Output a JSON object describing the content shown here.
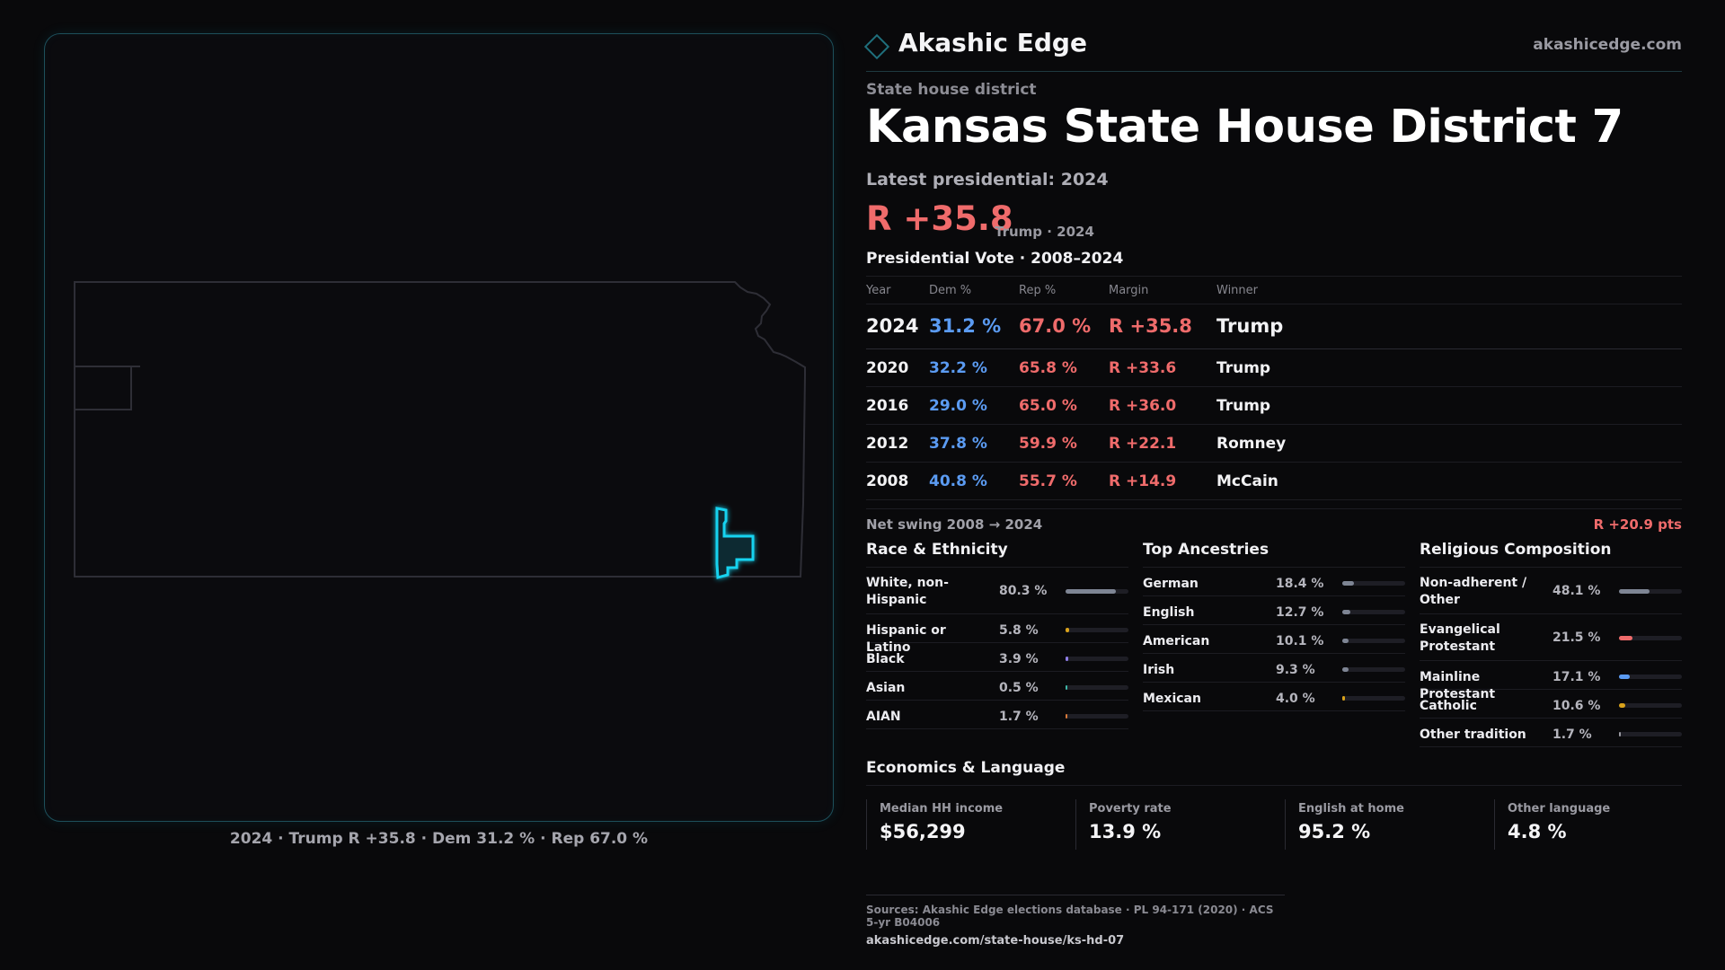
{
  "map": {
    "caption": "2024 · Trump R +35.8 · Dem 31.2 % · Rep 67.0 %"
  },
  "brand": {
    "name": "Akashic Edge",
    "url": "akashicedge.com"
  },
  "header": {
    "eyebrow": "State house district",
    "title": "Kansas State House District 7",
    "latest": "Latest presidential: 2024",
    "margin": "R +35.8",
    "margin_sub": "Trump · 2024"
  },
  "presidential": {
    "title": "Presidential Vote · 2008–2024",
    "headers": {
      "year": "Year",
      "dem": "Dem %",
      "rep": "Rep %",
      "margin": "Margin",
      "winner": "Winner"
    },
    "rows": [
      {
        "year": "2024",
        "dem": "31.2 %",
        "rep": "67.0 %",
        "margin": "R +35.8",
        "winner": "Trump"
      },
      {
        "year": "2020",
        "dem": "32.2 %",
        "rep": "65.8 %",
        "margin": "R +33.6",
        "winner": "Trump"
      },
      {
        "year": "2016",
        "dem": "29.0 %",
        "rep": "65.0 %",
        "margin": "R +36.0",
        "winner": "Trump"
      },
      {
        "year": "2012",
        "dem": "37.8 %",
        "rep": "59.9 %",
        "margin": "R +22.1",
        "winner": "Romney"
      },
      {
        "year": "2008",
        "dem": "40.8 %",
        "rep": "55.7 %",
        "margin": "R +14.9",
        "winner": "McCain"
      }
    ],
    "swing_label": "Net swing 2008 → 2024",
    "swing_value": "R +20.9 pts"
  },
  "race": {
    "title": "Race & Ethnicity",
    "rows": [
      {
        "label": "White, non-Hispanic",
        "pct": "80.3 %",
        "value": 80.3,
        "color": "#7e8594"
      },
      {
        "label": "Hispanic or Latino",
        "pct": "5.8 %",
        "value": 5.8,
        "color": "#d9a21b"
      },
      {
        "label": "Black",
        "pct": "3.9 %",
        "value": 3.9,
        "color": "#8f7ee8"
      },
      {
        "label": "Asian",
        "pct": "0.5 %",
        "value": 0.5,
        "color": "#3fb8a8"
      },
      {
        "label": "AIAN",
        "pct": "1.7 %",
        "value": 1.7,
        "color": "#d97a3a"
      }
    ]
  },
  "ancestry": {
    "title": "Top Ancestries",
    "rows": [
      {
        "label": "German",
        "pct": "18.4 %",
        "value": 18.4,
        "color": "#7e8594"
      },
      {
        "label": "English",
        "pct": "12.7 %",
        "value": 12.7,
        "color": "#7e8594"
      },
      {
        "label": "American",
        "pct": "10.1 %",
        "value": 10.1,
        "color": "#7e8594"
      },
      {
        "label": "Irish",
        "pct": "9.3 %",
        "value": 9.3,
        "color": "#7e8594"
      },
      {
        "label": "Mexican",
        "pct": "4.0 %",
        "value": 4.0,
        "color": "#d9a21b"
      }
    ]
  },
  "religion": {
    "title": "Religious Composition",
    "rows": [
      {
        "label": "Non-adherent / Other",
        "pct": "48.1 %",
        "value": 48.1,
        "color": "#7e8594"
      },
      {
        "label": "Evangelical Protestant",
        "pct": "21.5 %",
        "value": 21.5,
        "color": "#ef6b6b"
      },
      {
        "label": "Mainline Protestant",
        "pct": "17.1 %",
        "value": 17.1,
        "color": "#5b9bf2"
      },
      {
        "label": "Catholic",
        "pct": "10.6 %",
        "value": 10.6,
        "color": "#d9a21b"
      },
      {
        "label": "Other tradition",
        "pct": "1.7 %",
        "value": 1.7,
        "color": "#9a9aa2"
      }
    ]
  },
  "economics": {
    "title": "Economics & Language",
    "cells": [
      {
        "label": "Median HH income",
        "value": "$56,299"
      },
      {
        "label": "Poverty rate",
        "value": "13.9 %"
      },
      {
        "label": "English at home",
        "value": "95.2 %"
      },
      {
        "label": "Other language",
        "value": "4.8 %"
      }
    ]
  },
  "sources": {
    "line": "Sources: Akashic Edge elections database · PL 94-171 (2020) · ACS 5-yr B04006",
    "url": "akashicedge.com/state-house/ks-hd-07"
  },
  "colors": {
    "republican": "#ef6b6b",
    "democrat": "#5b9bf2",
    "district_glow": "#19d3f0"
  }
}
